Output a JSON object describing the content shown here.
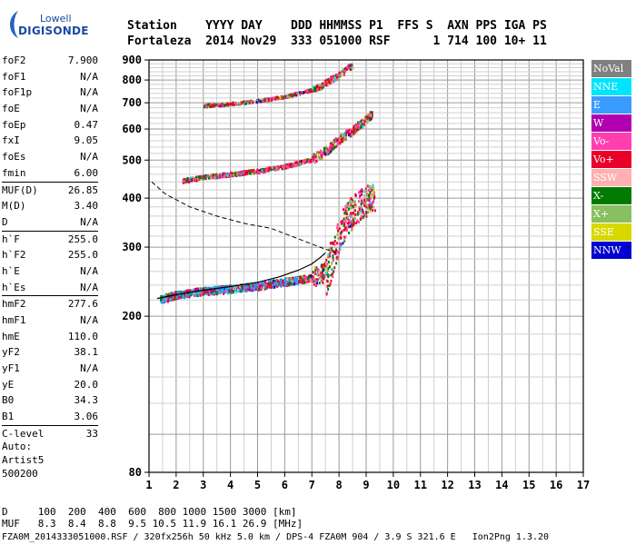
{
  "logo": {
    "line1": "Lowell",
    "line2": "DIGISONDE"
  },
  "header": {
    "line1": "Station    YYYY DAY    DDD HHMMSS P1  FFS S  AXN PPS IGA PS",
    "line2": "Fortaleza  2014 Nov29  333 051000 RSF      1 714 100 10+ 11"
  },
  "params": {
    "group1": [
      {
        "name": "foF2",
        "value": "7.900"
      },
      {
        "name": "foF1",
        "value": "N/A"
      },
      {
        "name": "foF1p",
        "value": "N/A"
      },
      {
        "name": "foE",
        "value": "N/A"
      },
      {
        "name": "foEp",
        "value": "0.47"
      },
      {
        "name": "fxI",
        "value": "9.05"
      },
      {
        "name": "foEs",
        "value": "N/A"
      },
      {
        "name": "fmin",
        "value": "6.00"
      }
    ],
    "group2": [
      {
        "name": "MUF(D)",
        "value": "26.85"
      },
      {
        "name": "M(D)",
        "value": "3.40"
      },
      {
        "name": "D",
        "value": "N/A"
      }
    ],
    "group3": [
      {
        "name": "h`F",
        "value": "255.0"
      },
      {
        "name": "h`F2",
        "value": "255.0"
      },
      {
        "name": "h`E",
        "value": "N/A"
      },
      {
        "name": "h`Es",
        "value": "N/A"
      }
    ],
    "group4": [
      {
        "name": "hmF2",
        "value": "277.6"
      },
      {
        "name": "hmF1",
        "value": "N/A"
      },
      {
        "name": "hmE",
        "value": "110.0"
      },
      {
        "name": "yF2",
        "value": "38.1"
      },
      {
        "name": "yF1",
        "value": "N/A"
      },
      {
        "name": "yE",
        "value": "20.0"
      },
      {
        "name": "B0",
        "value": "34.3"
      },
      {
        "name": "B1",
        "value": "3.06"
      }
    ],
    "group5": [
      {
        "name": "C-level",
        "value": "33"
      }
    ]
  },
  "autoscale": {
    "line1": "Auto:",
    "line2": "Artist5",
    "line3": "500200"
  },
  "legend": [
    {
      "label": "NoVal",
      "color": "#808080",
      "text_color": "#ffffff"
    },
    {
      "label": "NNE",
      "color": "#00e5ff",
      "text_color": "#ffffff"
    },
    {
      "label": "E",
      "color": "#3a9bff",
      "text_color": "#ffffff"
    },
    {
      "label": "W",
      "color": "#b000b0",
      "text_color": "#ffffff"
    },
    {
      "label": "Vo-",
      "color": "#ff3fb0",
      "text_color": "#ffffff"
    },
    {
      "label": "Vo+",
      "color": "#e8002a",
      "text_color": "#ffffff"
    },
    {
      "label": "SSW",
      "color": "#ffb0b0",
      "text_color": "#ffffff"
    },
    {
      "label": "X-",
      "color": "#007a00",
      "text_color": "#ffffff"
    },
    {
      "label": "X+",
      "color": "#88c060",
      "text_color": "#ffffff"
    },
    {
      "label": "SSE",
      "color": "#d8d800",
      "text_color": "#ffffff"
    },
    {
      "label": "NNW",
      "color": "#0000d0",
      "text_color": "#ffffff"
    }
  ],
  "bottom": {
    "d_row": "D     100  200  400  600  800 1000 1500 3000 [km]",
    "muf_row": "MUF   8.3  8.4  8.8  9.5 10.5 11.9 16.1 26.9 [MHz]"
  },
  "footer": "FZA0M_2014333051000.RSF / 320fx256h 50 kHz 5.0 km / DPS-4 FZA0M 904 / 3.9 S 321.6 E   Ion2Png 1.3.20",
  "chart_data": {
    "type": "scatter",
    "xlabel": "",
    "ylabel": "",
    "xlim": [
      1,
      17
    ],
    "ylim": [
      80,
      900
    ],
    "y_scale": "log",
    "x_ticks": [
      "1",
      "2",
      "3",
      "4",
      "5",
      "6",
      "7",
      "8",
      "9",
      "10",
      "11",
      "12",
      "13",
      "14",
      "15",
      "16",
      "17"
    ],
    "y_ticks": [
      "80",
      "200",
      "300",
      "400",
      "500",
      "600",
      "700",
      "800",
      "900"
    ],
    "grid": true,
    "traces": [
      {
        "name": "",
        "style": "o-trace echoes",
        "x": [
          1.4,
          2.0,
          3.0,
          4.0,
          5.0,
          6.0,
          7.0,
          7.5,
          7.8,
          8.0,
          8.3,
          8.6,
          8.9,
          9.1,
          9.3
        ],
        "y": [
          222,
          228,
          233,
          236,
          240,
          246,
          252,
          262,
          290,
          330,
          360,
          380,
          395,
          400,
          405
        ]
      },
      {
        "name": "",
        "style": "second hop echoes",
        "x": [
          2.2,
          3.0,
          4.0,
          5.0,
          6.0,
          7.0,
          7.5,
          8.0,
          8.5,
          9.0,
          9.2
        ],
        "y": [
          445,
          455,
          463,
          472,
          485,
          505,
          530,
          570,
          600,
          640,
          660
        ]
      },
      {
        "name": "",
        "style": "third hop echoes",
        "x": [
          3.0,
          4.0,
          5.0,
          6.0,
          7.0,
          7.5,
          8.0,
          8.5
        ],
        "y": [
          692,
          700,
          712,
          730,
          760,
          790,
          830,
          880
        ]
      }
    ],
    "profile_solid": {
      "x": [
        1.3,
        2,
        3,
        4,
        5,
        5.8,
        6.5,
        7.0,
        7.3,
        7.5
      ],
      "y": [
        222,
        227,
        233,
        238,
        244,
        252,
        262,
        272,
        282,
        290
      ]
    },
    "profile_dashed": {
      "x": [
        1.1,
        1.6,
        2.5,
        3.5,
        4.5,
        5.5,
        6.5,
        7.3,
        7.9
      ],
      "y": [
        440,
        410,
        380,
        360,
        345,
        335,
        315,
        300,
        290
      ]
    }
  }
}
